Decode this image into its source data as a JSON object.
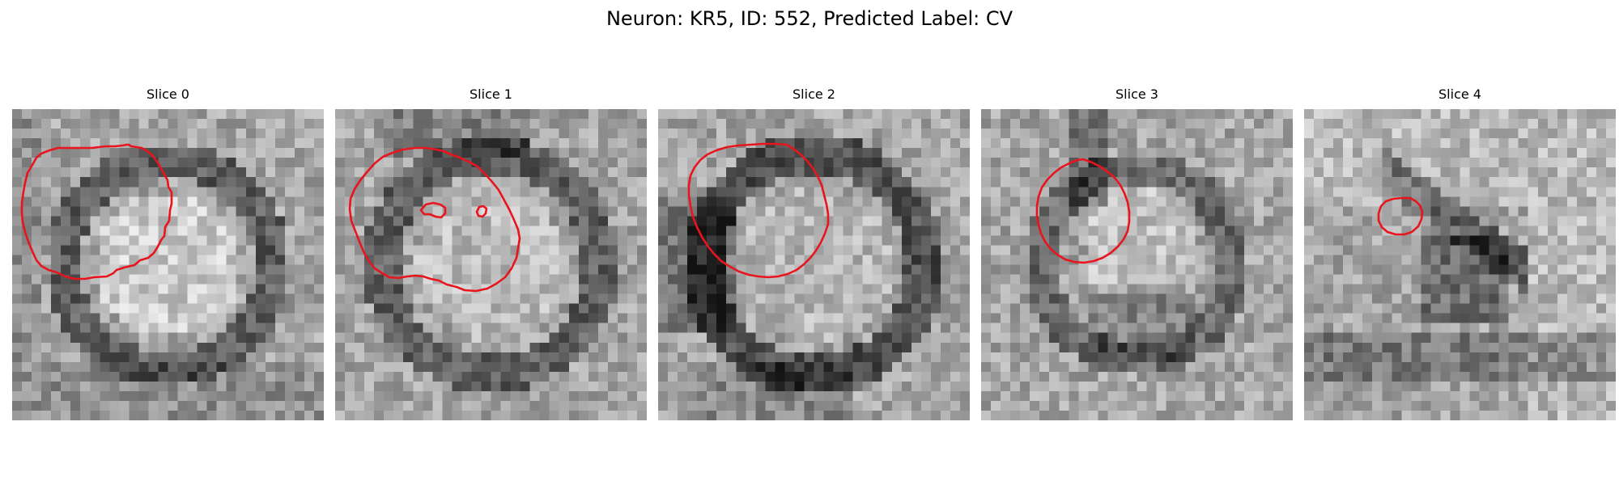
{
  "title": "Neuron: KR5, ID: 552, Predicted Label: CV",
  "colors": {
    "contour": "#e8141e",
    "background": "#ffffff"
  },
  "panels": [
    {
      "title": "Slice 0",
      "image": "grayscale-em-crop",
      "contours": [
        [
          [
            142,
            44
          ],
          [
            144,
            44
          ],
          [
            147,
            46
          ],
          [
            160,
            48
          ],
          [
            167,
            52
          ],
          [
            174,
            58
          ],
          [
            181,
            68
          ],
          [
            187,
            79
          ],
          [
            192,
            88
          ],
          [
            193,
            96
          ],
          [
            197,
            103
          ],
          [
            197,
            117
          ],
          [
            195,
            125
          ],
          [
            194,
            138
          ],
          [
            189,
            146
          ],
          [
            188,
            157
          ],
          [
            184,
            162
          ],
          [
            180,
            170
          ],
          [
            175,
            178
          ],
          [
            168,
            184
          ],
          [
            158,
            187
          ],
          [
            151,
            193
          ],
          [
            138,
            196
          ],
          [
            129,
            199
          ],
          [
            125,
            203
          ],
          [
            117,
            207
          ],
          [
            101,
            208
          ],
          [
            90,
            210
          ],
          [
            77,
            210
          ],
          [
            66,
            207
          ],
          [
            55,
            202
          ],
          [
            45,
            199
          ],
          [
            36,
            194
          ],
          [
            30,
            187
          ],
          [
            25,
            176
          ],
          [
            20,
            164
          ],
          [
            16,
            152
          ],
          [
            13,
            140
          ],
          [
            12,
            128
          ],
          [
            12,
            116
          ],
          [
            14,
            102
          ],
          [
            16,
            91
          ],
          [
            19,
            79
          ],
          [
            25,
            69
          ],
          [
            30,
            60
          ],
          [
            36,
            55
          ],
          [
            46,
            51
          ],
          [
            57,
            48
          ],
          [
            70,
            48
          ],
          [
            84,
            48
          ],
          [
            99,
            48
          ],
          [
            115,
            46
          ],
          [
            127,
            46
          ],
          [
            136,
            45
          ],
          [
            142,
            44
          ]
        ]
      ]
    },
    {
      "title": "Slice 1",
      "image": "grayscale-em-crop",
      "contours": [
        [
          [
            125,
            50
          ],
          [
            134,
            52
          ],
          [
            143,
            56
          ],
          [
            154,
            60
          ],
          [
            165,
            65
          ],
          [
            176,
            71
          ],
          [
            185,
            80
          ],
          [
            194,
            90
          ],
          [
            202,
            100
          ],
          [
            208,
            111
          ],
          [
            215,
            124
          ],
          [
            221,
            137
          ],
          [
            226,
            149
          ],
          [
            228,
            160
          ],
          [
            226,
            172
          ],
          [
            224,
            184
          ],
          [
            218,
            197
          ],
          [
            210,
            208
          ],
          [
            199,
            216
          ],
          [
            188,
            222
          ],
          [
            174,
            225
          ],
          [
            160,
            224
          ],
          [
            150,
            220
          ],
          [
            138,
            217
          ],
          [
            128,
            212
          ],
          [
            118,
            210
          ],
          [
            109,
            207
          ],
          [
            99,
            206
          ],
          [
            89,
            207
          ],
          [
            78,
            209
          ],
          [
            67,
            208
          ],
          [
            58,
            203
          ],
          [
            49,
            197
          ],
          [
            41,
            187
          ],
          [
            35,
            176
          ],
          [
            30,
            164
          ],
          [
            25,
            151
          ],
          [
            20,
            138
          ],
          [
            18,
            124
          ],
          [
            19,
            111
          ],
          [
            24,
            99
          ],
          [
            31,
            88
          ],
          [
            40,
            77
          ],
          [
            49,
            67
          ],
          [
            59,
            59
          ],
          [
            71,
            54
          ],
          [
            84,
            50
          ],
          [
            98,
            48
          ],
          [
            112,
            48
          ],
          [
            125,
            50
          ]
        ]
      ],
      "holes": [
        [
          [
            106,
            125
          ],
          [
            112,
            118
          ],
          [
            121,
            116
          ],
          [
            130,
            118
          ],
          [
            136,
            122
          ],
          [
            136,
            129
          ],
          [
            131,
            134
          ],
          [
            124,
            133
          ],
          [
            117,
            130
          ],
          [
            110,
            130
          ],
          [
            106,
            125
          ]
        ],
        [
          [
            175,
            127
          ],
          [
            178,
            121
          ],
          [
            183,
            120
          ],
          [
            187,
            123
          ],
          [
            186,
            129
          ],
          [
            182,
            133
          ],
          [
            177,
            132
          ],
          [
            175,
            127
          ]
        ]
      ]
    },
    {
      "title": "Slice 2",
      "image": "grayscale-em-crop",
      "contours": [
        [
          [
            159,
            44
          ],
          [
            167,
            49
          ],
          [
            176,
            56
          ],
          [
            184,
            64
          ],
          [
            191,
            73
          ],
          [
            197,
            83
          ],
          [
            202,
            94
          ],
          [
            205,
            106
          ],
          [
            208,
            118
          ],
          [
            210,
            130
          ],
          [
            210,
            142
          ],
          [
            206,
            154
          ],
          [
            201,
            165
          ],
          [
            195,
            175
          ],
          [
            188,
            184
          ],
          [
            180,
            192
          ],
          [
            171,
            199
          ],
          [
            160,
            204
          ],
          [
            148,
            207
          ],
          [
            136,
            208
          ],
          [
            124,
            207
          ],
          [
            112,
            205
          ],
          [
            100,
            201
          ],
          [
            89,
            195
          ],
          [
            78,
            188
          ],
          [
            69,
            179
          ],
          [
            61,
            169
          ],
          [
            54,
            158
          ],
          [
            48,
            146
          ],
          [
            43,
            133
          ],
          [
            40,
            120
          ],
          [
            38,
            107
          ],
          [
            38,
            94
          ],
          [
            40,
            82
          ],
          [
            45,
            72
          ],
          [
            52,
            63
          ],
          [
            61,
            56
          ],
          [
            72,
            51
          ],
          [
            85,
            47
          ],
          [
            99,
            45
          ],
          [
            114,
            44
          ],
          [
            129,
            43
          ],
          [
            144,
            43
          ],
          [
            159,
            44
          ]
        ]
      ]
    },
    {
      "title": "Slice 3",
      "image": "grayscale-em-crop",
      "contours": [
        [
          [
            126,
            62
          ],
          [
            137,
            66
          ],
          [
            147,
            71
          ],
          [
            157,
            78
          ],
          [
            165,
            85
          ],
          [
            172,
            94
          ],
          [
            177,
            104
          ],
          [
            181,
            115
          ],
          [
            183,
            127
          ],
          [
            183,
            139
          ],
          [
            181,
            151
          ],
          [
            176,
            161
          ],
          [
            169,
            170
          ],
          [
            160,
            178
          ],
          [
            150,
            184
          ],
          [
            139,
            188
          ],
          [
            127,
            190
          ],
          [
            115,
            189
          ],
          [
            104,
            186
          ],
          [
            94,
            180
          ],
          [
            86,
            173
          ],
          [
            79,
            164
          ],
          [
            74,
            154
          ],
          [
            71,
            143
          ],
          [
            69,
            132
          ],
          [
            69,
            120
          ],
          [
            71,
            108
          ],
          [
            75,
            97
          ],
          [
            82,
            87
          ],
          [
            90,
            79
          ],
          [
            99,
            72
          ],
          [
            109,
            67
          ],
          [
            119,
            63
          ],
          [
            126,
            62
          ]
        ]
      ]
    },
    {
      "title": "Slice 4",
      "image": "grayscale-em-crop",
      "contours": [
        [
          [
            120,
            110
          ],
          [
            131,
            110
          ],
          [
            138,
            114
          ],
          [
            143,
            119
          ],
          [
            146,
            127
          ],
          [
            145,
            136
          ],
          [
            141,
            145
          ],
          [
            133,
            152
          ],
          [
            124,
            155
          ],
          [
            113,
            155
          ],
          [
            103,
            152
          ],
          [
            96,
            146
          ],
          [
            92,
            138
          ],
          [
            92,
            129
          ],
          [
            95,
            120
          ],
          [
            101,
            114
          ],
          [
            110,
            111
          ],
          [
            120,
            110
          ]
        ]
      ]
    }
  ]
}
